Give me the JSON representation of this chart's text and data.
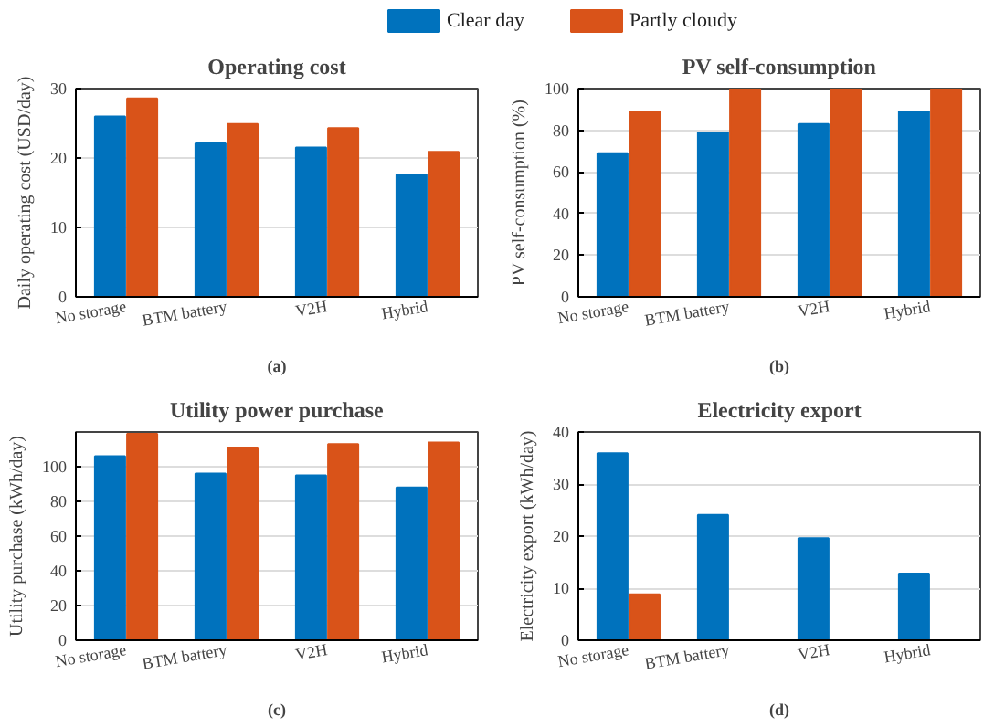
{
  "chart_data": [
    {
      "type": "bar",
      "title": "Operating cost",
      "ylabel": "Daily operating cost (USD/day)",
      "categories": [
        "No storage",
        "BTM battery",
        "V2H",
        "Hybrid"
      ],
      "series": [
        {
          "name": "Clear day",
          "color": "#0072bd",
          "values": [
            26.0,
            22.1,
            21.5,
            17.6
          ]
        },
        {
          "name": "Partly cloudy",
          "color": "#d95319",
          "values": [
            28.6,
            24.9,
            24.3,
            20.9
          ]
        }
      ],
      "ylim": [
        0,
        30
      ],
      "yticks": [
        0,
        10,
        20,
        30
      ],
      "grid": "y",
      "legend": "top",
      "annotations": [
        "(a)"
      ]
    },
    {
      "type": "bar",
      "title": "PV self-consumption",
      "ylabel": "PV self-consumption (%)",
      "categories": [
        "No storage",
        "BTM battery",
        "V2H",
        "Hybrid"
      ],
      "series": [
        {
          "color": "#0072bd",
          "values": [
            69,
            79,
            83,
            89
          ]
        },
        {
          "color": "#d95319",
          "values": [
            89,
            100,
            100,
            100
          ]
        }
      ],
      "ylim": [
        0,
        100
      ],
      "yticks": [
        0,
        20,
        40,
        60,
        80,
        100
      ],
      "grid": "y",
      "annotations": [
        "(b)"
      ]
    },
    {
      "type": "bar",
      "title": "Utility power purchase",
      "ylabel": "Utility purchase (kWh/day)",
      "categories": [
        "No storage",
        "BTM battery",
        "V2H",
        "Hybrid"
      ],
      "series": [
        {
          "color": "#0072bd",
          "values": [
            106,
            96,
            95,
            88
          ]
        },
        {
          "color": "#d95319",
          "values": [
            119,
            111,
            113,
            114
          ]
        }
      ],
      "ylim": [
        0,
        120
      ],
      "yticks": [
        0,
        20,
        40,
        60,
        80,
        100
      ],
      "grid": "y",
      "annotations": [
        "(c)"
      ]
    },
    {
      "type": "bar",
      "title": "Electricity export",
      "ylabel": "Electricity export (kWh/day)",
      "categories": [
        "No storage",
        "BTM battery",
        "V2H",
        "Hybrid"
      ],
      "series": [
        {
          "color": "#0072bd",
          "values": [
            35.9,
            24.1,
            19.6,
            12.8
          ]
        },
        {
          "color": "#d95319",
          "values": [
            8.8,
            0,
            0,
            0
          ]
        }
      ],
      "ylim": [
        0,
        40
      ],
      "yticks": [
        0,
        10,
        20,
        30,
        40
      ],
      "grid": "y",
      "annotations": [
        "(d)"
      ]
    }
  ]
}
